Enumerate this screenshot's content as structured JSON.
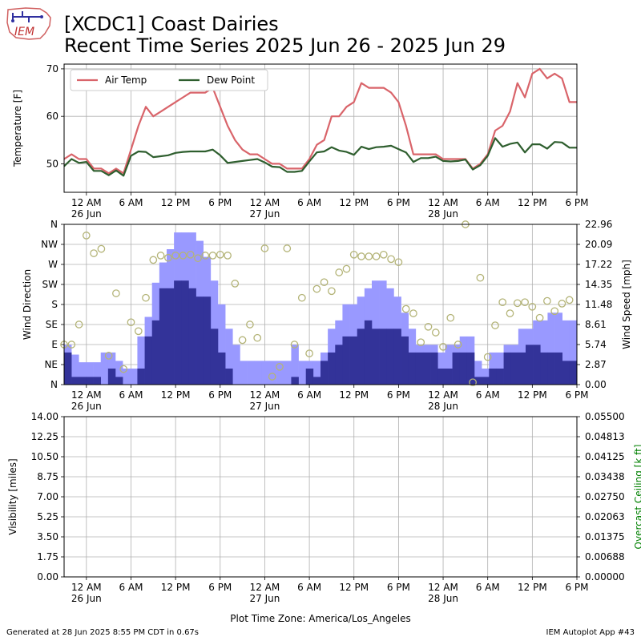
{
  "header": {
    "title_line1": "[XCDC1] Coast Dairies",
    "title_line2": "Recent Time Series 2025 Jun 26 - 2025 Jun 29",
    "logo_text": "IEM"
  },
  "footer": {
    "generated": "Generated at 28 Jun 2025 8:55 PM CDT in 0.67s",
    "app": "IEM Autoplot App #43",
    "timezone_label": "Plot Time Zone: America/Los_Angeles"
  },
  "x_axis": {
    "range_hours": [
      -3,
      66
    ],
    "ticks": [
      {
        "h": 0,
        "label": "12 AM",
        "sub": "26 Jun"
      },
      {
        "h": 6,
        "label": "6 AM",
        "sub": ""
      },
      {
        "h": 12,
        "label": "12 PM",
        "sub": ""
      },
      {
        "h": 18,
        "label": "6 PM",
        "sub": ""
      },
      {
        "h": 24,
        "label": "12 AM",
        "sub": "27 Jun"
      },
      {
        "h": 30,
        "label": "6 AM",
        "sub": ""
      },
      {
        "h": 36,
        "label": "12 PM",
        "sub": ""
      },
      {
        "h": 42,
        "label": "6 PM",
        "sub": ""
      },
      {
        "h": 48,
        "label": "12 AM",
        "sub": "28 Jun"
      },
      {
        "h": 54,
        "label": "6 AM",
        "sub": ""
      },
      {
        "h": 60,
        "label": "12 PM",
        "sub": ""
      },
      {
        "h": 66,
        "label": "6 PM",
        "sub": ""
      }
    ]
  },
  "colors": {
    "air_temp": "#d9646a",
    "dew_point": "#2e5e2e",
    "gust": "#9999ff",
    "wind_speed": "#333399",
    "wind_dir_marker": "#b4b478",
    "ceiling_label": "#008000"
  },
  "chart_data": [
    {
      "type": "line",
      "ylabel": "Temperature [F]",
      "ylim": [
        44,
        71
      ],
      "yticks": [
        50,
        60,
        70
      ],
      "grid": true,
      "legend_position": "top-left",
      "series": [
        {
          "name": "Air Temp",
          "x": [
            -3,
            -2,
            -1,
            0,
            1,
            2,
            3,
            4,
            5,
            6,
            7,
            8,
            9,
            10,
            11,
            12,
            13,
            14,
            15,
            16,
            17,
            18,
            19,
            20,
            21,
            22,
            23,
            24,
            25,
            26,
            27,
            28,
            29,
            30,
            31,
            32,
            33,
            34,
            35,
            36,
            37,
            38,
            39,
            40,
            41,
            42,
            43,
            44,
            45,
            46,
            47,
            48,
            49,
            50,
            51,
            52,
            53,
            54,
            55,
            56,
            57,
            58,
            59,
            60,
            61,
            62,
            63,
            64,
            65,
            66
          ],
          "y": [
            51,
            52,
            51,
            51,
            49,
            49,
            48,
            49,
            48,
            53,
            58,
            62,
            60,
            61,
            62,
            63,
            64,
            65,
            65,
            65,
            66,
            62,
            58,
            55,
            53,
            52,
            52,
            51,
            50,
            50,
            49,
            49,
            49,
            51,
            54,
            55,
            60,
            60,
            62,
            63,
            67,
            66,
            66,
            66,
            65,
            63,
            58,
            52,
            52,
            52,
            52,
            51,
            51,
            51,
            51,
            49,
            50,
            52,
            57,
            58,
            61,
            67,
            64,
            69,
            70,
            68,
            69,
            68,
            63,
            63
          ]
        },
        {
          "name": "Dew Point",
          "x": [
            -3,
            -2,
            -1,
            0,
            1,
            2,
            3,
            4,
            5,
            6,
            7,
            8,
            9,
            10,
            11,
            12,
            13,
            14,
            15,
            16,
            17,
            18,
            19,
            20,
            21,
            22,
            23,
            24,
            25,
            26,
            27,
            28,
            29,
            30,
            31,
            32,
            33,
            34,
            35,
            36,
            37,
            38,
            39,
            40,
            41,
            42,
            43,
            44,
            45,
            46,
            47,
            48,
            49,
            50,
            51,
            52,
            53,
            54,
            55,
            56,
            57,
            58,
            59,
            60,
            61,
            62,
            63,
            64,
            65,
            66
          ],
          "y": [
            49.5,
            51,
            50.2,
            50.4,
            48.5,
            48.5,
            47.6,
            48.6,
            47.5,
            51.7,
            52.6,
            52.5,
            51.4,
            51.6,
            51.8,
            52.3,
            52.5,
            52.6,
            52.6,
            52.6,
            53,
            51.8,
            50.2,
            50.4,
            50.6,
            50.8,
            51,
            50.3,
            49.4,
            49.3,
            48.3,
            48.3,
            48.5,
            50.5,
            52.4,
            52.6,
            53.5,
            52.8,
            52.5,
            51.9,
            53.6,
            53.1,
            53.5,
            53.6,
            53.8,
            53.1,
            52.4,
            50.4,
            51.2,
            51.2,
            51.5,
            50.6,
            50.5,
            50.6,
            50.9,
            48.8,
            49.7,
            51.7,
            55.4,
            53.6,
            54.2,
            54.5,
            52.4,
            54.1,
            54.1,
            53.2,
            54.6,
            54.5,
            53.4,
            53.4
          ]
        }
      ]
    },
    {
      "type": "bar",
      "ylabel": "Wind Direction",
      "y2label": "Wind Speed [mph]",
      "direction_ticks": [
        "N",
        "NE",
        "E",
        "SE",
        "S",
        "SW",
        "W",
        "NW",
        "N"
      ],
      "ylim_direction": [
        0,
        360
      ],
      "ylim_speed": [
        0,
        22.96
      ],
      "speed_ticks": [
        "0.00",
        "2.87",
        "5.74",
        "8.61",
        "11.48",
        "14.35",
        "17.22",
        "20.09",
        "22.96"
      ],
      "grid": true,
      "x": [
        -3,
        -2,
        -1,
        0,
        1,
        2,
        3,
        4,
        5,
        6,
        7,
        8,
        9,
        10,
        11,
        12,
        13,
        14,
        15,
        16,
        17,
        18,
        19,
        20,
        21,
        22,
        23,
        24,
        25,
        26,
        27,
        28,
        29,
        30,
        31,
        32,
        33,
        34,
        35,
        36,
        37,
        38,
        39,
        40,
        41,
        42,
        43,
        44,
        45,
        46,
        47,
        48,
        49,
        50,
        51,
        52,
        53,
        54,
        55,
        56,
        57,
        58,
        59,
        60,
        61,
        62,
        63,
        64,
        65,
        66
      ],
      "series": [
        {
          "name": "gust",
          "values": [
            5.7,
            4.3,
            3.2,
            3.2,
            3.2,
            4.6,
            4.6,
            3.4,
            2.3,
            2.3,
            6.9,
            9.7,
            14.6,
            17.5,
            19.4,
            21.8,
            21.8,
            21.8,
            20.6,
            18.3,
            14.9,
            11.5,
            8.0,
            5.7,
            3.4,
            3.4,
            3.4,
            3.4,
            3.4,
            3.4,
            3.4,
            5.7,
            3.4,
            3.4,
            3.4,
            4.6,
            8.0,
            9.2,
            11.5,
            11.5,
            12.6,
            13.8,
            14.9,
            14.9,
            13.8,
            12.6,
            10.3,
            8.0,
            5.7,
            5.7,
            5.7,
            4.6,
            5.7,
            5.7,
            6.9,
            6.9,
            3.4,
            2.3,
            4.6,
            4.6,
            5.7,
            5.7,
            8.0,
            8.0,
            9.2,
            9.2,
            10.3,
            10.3,
            9.2,
            9.2
          ]
        },
        {
          "name": "wind speed",
          "values": [
            4.6,
            1.1,
            1.1,
            1.1,
            1.1,
            0,
            2.3,
            1.1,
            0,
            0,
            2.3,
            6.9,
            9.2,
            13.8,
            13.8,
            14.9,
            14.9,
            13.8,
            12.6,
            12.6,
            8.0,
            4.6,
            2.3,
            0,
            0,
            0,
            0,
            0,
            0,
            0,
            0,
            1.1,
            0,
            2.3,
            1.1,
            3.4,
            4.6,
            5.7,
            6.9,
            6.9,
            8.0,
            9.2,
            8.0,
            8.0,
            8.0,
            8.0,
            6.9,
            4.6,
            4.6,
            4.6,
            4.6,
            2.3,
            2.3,
            4.6,
            4.6,
            4.6,
            1.1,
            1.1,
            2.3,
            2.3,
            4.6,
            4.6,
            4.6,
            5.7,
            5.7,
            4.6,
            4.6,
            4.6,
            3.4,
            3.4
          ]
        }
      ],
      "direction_degrees": [
        {
          "h": -3,
          "deg": 90
        },
        {
          "h": -2,
          "deg": 90
        },
        {
          "h": -1,
          "deg": 135
        },
        {
          "h": 0,
          "deg": 335
        },
        {
          "h": 1,
          "deg": 295
        },
        {
          "h": 2,
          "deg": 305
        },
        {
          "h": 3,
          "deg": 65
        },
        {
          "h": 4,
          "deg": 205
        },
        {
          "h": 5,
          "deg": 35
        },
        {
          "h": 6,
          "deg": 140
        },
        {
          "h": 7,
          "deg": 120
        },
        {
          "h": 8,
          "deg": 195
        },
        {
          "h": 9,
          "deg": 280
        },
        {
          "h": 10,
          "deg": 290
        },
        {
          "h": 11,
          "deg": 285
        },
        {
          "h": 12,
          "deg": 290
        },
        {
          "h": 13,
          "deg": 290
        },
        {
          "h": 14,
          "deg": 292
        },
        {
          "h": 15,
          "deg": 284
        },
        {
          "h": 16,
          "deg": 290
        },
        {
          "h": 17,
          "deg": 290
        },
        {
          "h": 18,
          "deg": 292
        },
        {
          "h": 19,
          "deg": 290
        },
        {
          "h": 20,
          "deg": 227
        },
        {
          "h": 21,
          "deg": 100
        },
        {
          "h": 22,
          "deg": 135
        },
        {
          "h": 23,
          "deg": 105
        },
        {
          "h": 24,
          "deg": 306
        },
        {
          "h": 25,
          "deg": 18
        },
        {
          "h": 26,
          "deg": 40
        },
        {
          "h": 27,
          "deg": 306
        },
        {
          "h": 28,
          "deg": 90
        },
        {
          "h": 29,
          "deg": 195
        },
        {
          "h": 30,
          "deg": 70
        },
        {
          "h": 31,
          "deg": 215
        },
        {
          "h": 32,
          "deg": 230
        },
        {
          "h": 33,
          "deg": 210
        },
        {
          "h": 34,
          "deg": 252
        },
        {
          "h": 35,
          "deg": 260
        },
        {
          "h": 36,
          "deg": 292
        },
        {
          "h": 37,
          "deg": 288
        },
        {
          "h": 38,
          "deg": 288
        },
        {
          "h": 39,
          "deg": 288
        },
        {
          "h": 40,
          "deg": 292
        },
        {
          "h": 41,
          "deg": 282
        },
        {
          "h": 42,
          "deg": 275
        },
        {
          "h": 43,
          "deg": 170
        },
        {
          "h": 44,
          "deg": 160
        },
        {
          "h": 45,
          "deg": 95
        },
        {
          "h": 46,
          "deg": 130
        },
        {
          "h": 47,
          "deg": 117
        },
        {
          "h": 48,
          "deg": 85
        },
        {
          "h": 49,
          "deg": 150
        },
        {
          "h": 50,
          "deg": 90
        },
        {
          "h": 51,
          "deg": 360
        },
        {
          "h": 52,
          "deg": 5
        },
        {
          "h": 53,
          "deg": 240
        },
        {
          "h": 54,
          "deg": 62
        },
        {
          "h": 55,
          "deg": 133
        },
        {
          "h": 56,
          "deg": 185
        },
        {
          "h": 57,
          "deg": 160
        },
        {
          "h": 58,
          "deg": 183
        },
        {
          "h": 59,
          "deg": 185
        },
        {
          "h": 60,
          "deg": 175
        },
        {
          "h": 61,
          "deg": 150
        },
        {
          "h": 62,
          "deg": 188
        },
        {
          "h": 63,
          "deg": 165
        },
        {
          "h": 64,
          "deg": 182
        },
        {
          "h": 65,
          "deg": 190
        }
      ]
    },
    {
      "type": "line",
      "ylabel": "Visibility [miles]",
      "y2label": "Overcast Ceiling [k ft]",
      "ylim": [
        0,
        14
      ],
      "y2lim": [
        0,
        0.055
      ],
      "yticks": [
        "0.00",
        "1.75",
        "3.50",
        "5.25",
        "7.00",
        "8.75",
        "10.50",
        "12.25",
        "14.00"
      ],
      "y2ticks": [
        "0.00000",
        "0.00688",
        "0.01375",
        "0.02063",
        "0.02750",
        "0.03438",
        "0.04125",
        "0.04813",
        "0.05500"
      ],
      "grid": true,
      "series": []
    }
  ]
}
